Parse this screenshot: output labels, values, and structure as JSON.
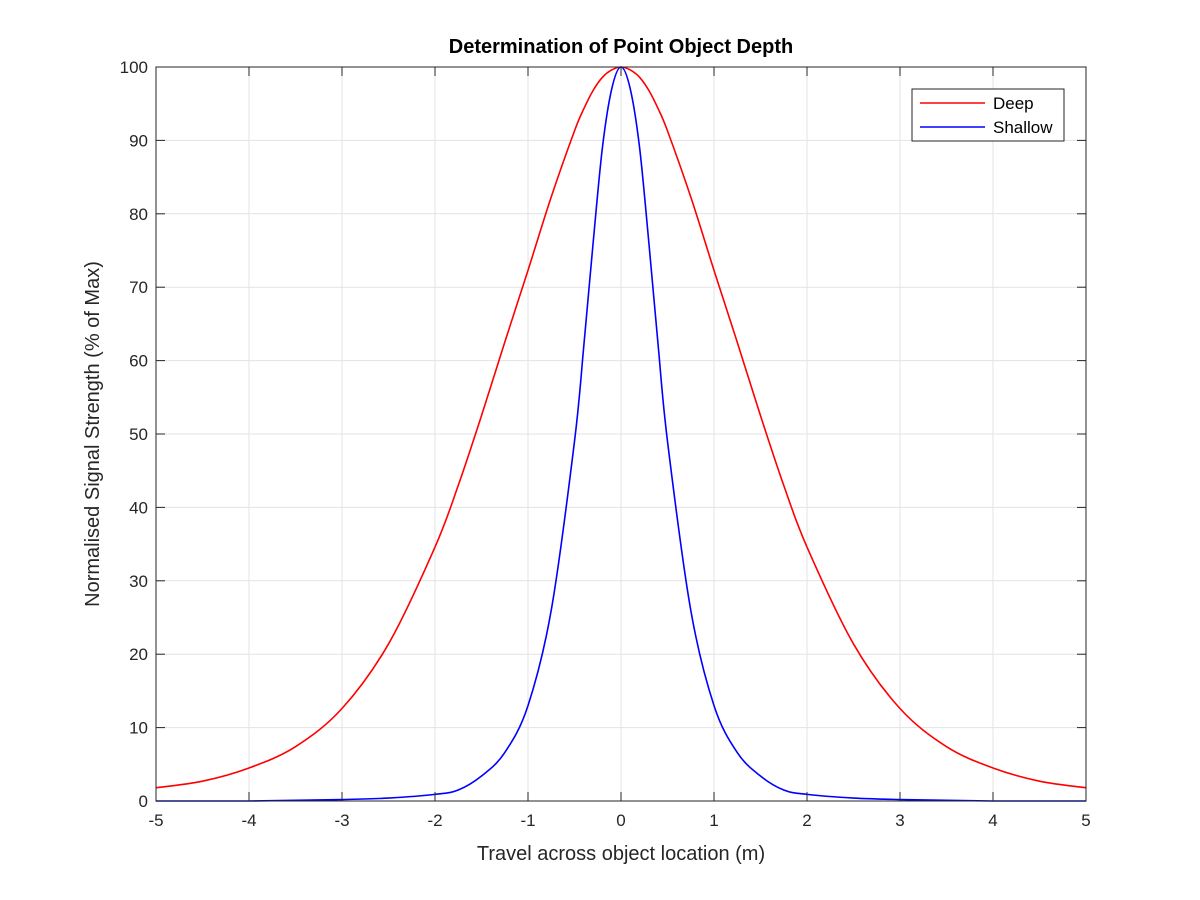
{
  "chart_data": {
    "type": "line",
    "title": "Determination of Point Object Depth",
    "xlabel": "Travel across object location (m)",
    "ylabel": "Normalised Signal Strength  (% of Max)",
    "xlim": [
      -5,
      5
    ],
    "ylim": [
      0,
      100
    ],
    "xticks": [
      -5,
      -4,
      -3,
      -2,
      -1,
      0,
      1,
      2,
      3,
      4,
      5
    ],
    "yticks": [
      0,
      10,
      20,
      30,
      40,
      50,
      60,
      70,
      80,
      90,
      100
    ],
    "grid": true,
    "legend_position": "top-right",
    "x": [
      -5,
      -4.5,
      -4,
      -3.5,
      -3,
      -2.5,
      -2,
      -1.75,
      -1.5,
      -1.25,
      -1,
      -0.75,
      -0.5,
      -0.4,
      -0.3,
      -0.2,
      -0.1,
      0,
      0.1,
      0.2,
      0.3,
      0.4,
      0.5,
      0.75,
      1,
      1.25,
      1.5,
      1.75,
      2,
      2.5,
      3,
      3.5,
      4,
      4.5,
      5
    ],
    "series": [
      {
        "name": "Deep",
        "color": "#ff0000",
        "values": [
          1.8,
          2.7,
          4.5,
          7.4,
          12.6,
          21.4,
          34.6,
          43.0,
          52.5,
          62.5,
          72.3,
          82.3,
          91.3,
          94.3,
          96.8,
          98.6,
          99.6,
          100,
          99.6,
          98.6,
          96.8,
          94.3,
          91.3,
          82.3,
          72.3,
          62.5,
          52.5,
          43.0,
          34.6,
          21.4,
          12.6,
          7.4,
          4.5,
          2.7,
          1.8
        ]
      },
      {
        "name": "Shallow",
        "color": "#0000ff",
        "values": [
          0.0,
          0.0,
          0.0,
          0.1,
          0.2,
          0.4,
          0.9,
          1.5,
          3.4,
          6.6,
          13.0,
          26.0,
          49.0,
          62.0,
          76.0,
          89.0,
          97.0,
          100,
          97.0,
          89.0,
          76.0,
          62.0,
          49.0,
          26.0,
          13.0,
          6.6,
          3.4,
          1.5,
          0.9,
          0.4,
          0.2,
          0.1,
          0.0,
          0.0,
          0.0
        ]
      }
    ]
  }
}
